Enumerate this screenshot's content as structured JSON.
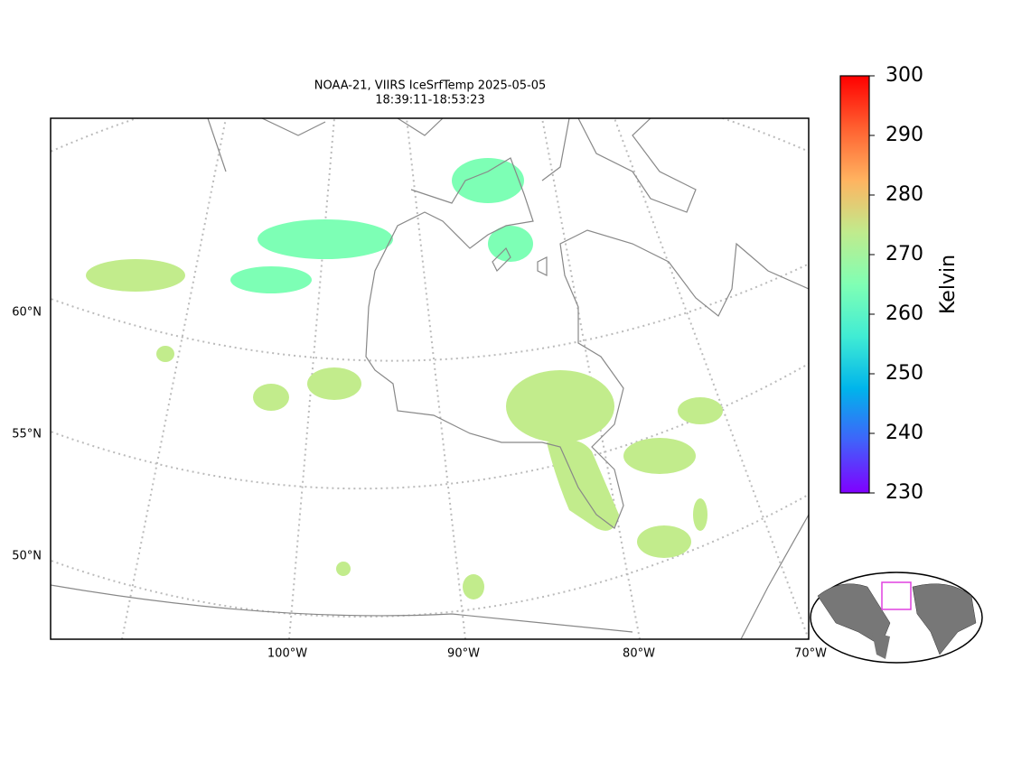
{
  "title": [
    "NOAA-21, VIIRS IceSrfTemp 2025-05-05",
    "18:39:11-18:53:23"
  ],
  "map": {
    "lat_labels": [
      "60°N",
      "55°N",
      "50°N"
    ],
    "lon_labels": [
      "100°W",
      "90°W",
      "80°W",
      "70°W"
    ]
  },
  "colorbar": {
    "label": "Kelvin",
    "lim": [
      230,
      300
    ],
    "ticks": [
      230,
      240,
      250,
      260,
      270,
      280,
      290,
      300
    ],
    "colormap": [
      "#8000ff",
      "#4062fa",
      "#00b4eb",
      "#40ecd4",
      "#80ffb4",
      "#c0eb8d",
      "#ffb360",
      "#ff6030",
      "#ff0000"
    ]
  }
}
